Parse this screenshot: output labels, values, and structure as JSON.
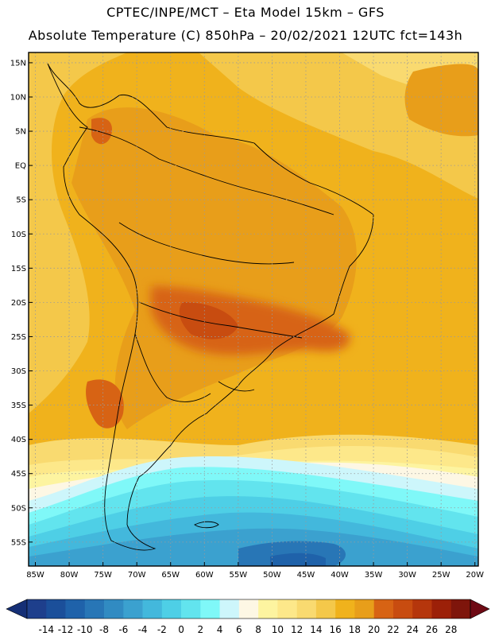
{
  "header": {
    "line1": "CPTEC/INPE/MCT –  Eta Model 15km – GFS",
    "line2": "Absolute Temperature (C) 850hPa – 20/02/2021 12UTC fct=143h"
  },
  "map": {
    "lat_labels": [
      "15N",
      "10N",
      "5N",
      "EQ",
      "5S",
      "10S",
      "15S",
      "20S",
      "25S",
      "30S",
      "35S",
      "40S",
      "45S",
      "50S",
      "55S"
    ],
    "lat_values": [
      15,
      10,
      5,
      0,
      -5,
      -10,
      -15,
      -20,
      -25,
      -30,
      -35,
      -40,
      -45,
      -50,
      -55
    ],
    "lon_labels": [
      "85W",
      "80W",
      "75W",
      "70W",
      "65W",
      "60W",
      "55W",
      "50W",
      "45W",
      "40W",
      "35W",
      "30W",
      "25W",
      "20W"
    ],
    "lon_values": [
      -85,
      -80,
      -75,
      -70,
      -65,
      -60,
      -55,
      -50,
      -45,
      -40,
      -35,
      -30,
      -25,
      -20
    ],
    "lat_range": [
      -58.5,
      16.5
    ],
    "lon_range": [
      -86,
      -19.5
    ]
  },
  "legend": {
    "labels": [
      "-14",
      "-12",
      "-10",
      "-8",
      "-6",
      "-4",
      "-2",
      "0",
      "2",
      "4",
      "6",
      "8",
      "10",
      "12",
      "14",
      "16",
      "18",
      "20",
      "22",
      "24",
      "26",
      "28"
    ],
    "colors": [
      "#1e3f8c",
      "#1b4f9a",
      "#1f62aa",
      "#2876b6",
      "#318bc2",
      "#3ba1cf",
      "#43b8dc",
      "#4ecfe6",
      "#62e4ee",
      "#7ff8f8",
      "#cdf6fb",
      "#fdf7e4",
      "#fdf4a0",
      "#fde88a",
      "#f9da70",
      "#f4c84a",
      "#f0b21c",
      "#e89e1a",
      "#d76314",
      "#c84c10",
      "#b5360c",
      "#9c2008",
      "#7e150b"
    ],
    "under_color": "#152f76",
    "over_color": "#6e0a14"
  }
}
